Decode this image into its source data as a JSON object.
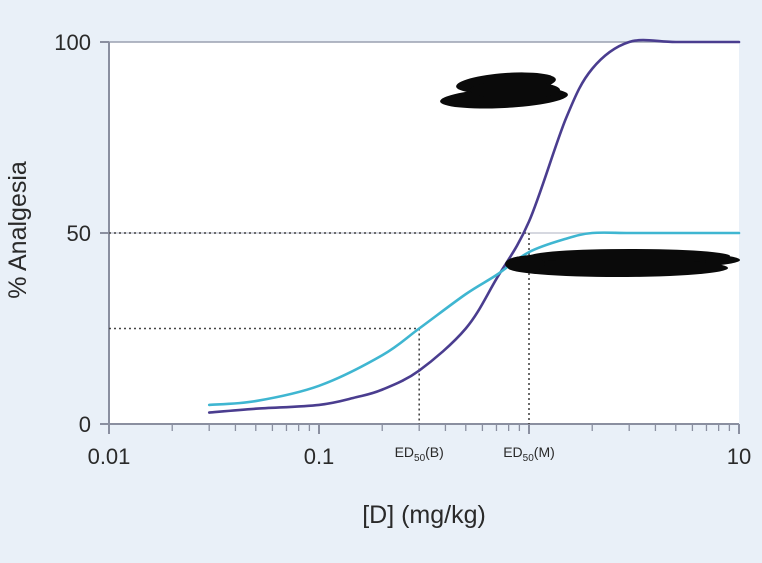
{
  "chart_data": {
    "type": "line",
    "xscale": "log",
    "xlim": [
      0.01,
      10
    ],
    "ylim": [
      0,
      100
    ],
    "xlabel": "[D] (mg/kg)",
    "ylabel": "% Analgesia",
    "xticks": [
      {
        "value": 0.01,
        "label": "0.01"
      },
      {
        "value": 0.1,
        "label": "0.1"
      },
      {
        "value": 10,
        "label": "10"
      }
    ],
    "yticks": [
      {
        "value": 0,
        "label": "0"
      },
      {
        "value": 50,
        "label": "50"
      },
      {
        "value": 100,
        "label": "100"
      }
    ],
    "series": [
      {
        "color": "#4a3d8f",
        "x": [
          0.03,
          0.05,
          0.1,
          0.15,
          0.2,
          0.3,
          0.5,
          0.7,
          1.0,
          1.5,
          2.0,
          3.0,
          5.0,
          10.0
        ],
        "y": [
          3,
          4,
          5,
          7,
          9,
          14,
          25,
          38,
          53,
          80,
          93,
          100,
          100,
          100
        ]
      },
      {
        "color": "#3fb6d1",
        "x": [
          0.03,
          0.05,
          0.1,
          0.2,
          0.3,
          0.5,
          0.7,
          1.0,
          1.5,
          2.0,
          3.0,
          5.0,
          10.0
        ],
        "y": [
          5,
          6,
          10,
          18,
          25,
          34,
          39,
          45,
          48.5,
          50,
          50,
          50,
          50
        ]
      }
    ],
    "reference_lines": [
      {
        "x": 0.3,
        "y": 25,
        "label": "ED50(B)"
      },
      {
        "x": 1.0,
        "y": 50,
        "label": "ED50(M)"
      }
    ],
    "grid": false,
    "colors": {
      "axis": "#8a8fa0",
      "frame": "#9aa0b0",
      "background": "#e9f0f8",
      "plot_background": "#ffffff",
      "dotted": "#444444",
      "redaction": "#0a0a0a"
    }
  }
}
